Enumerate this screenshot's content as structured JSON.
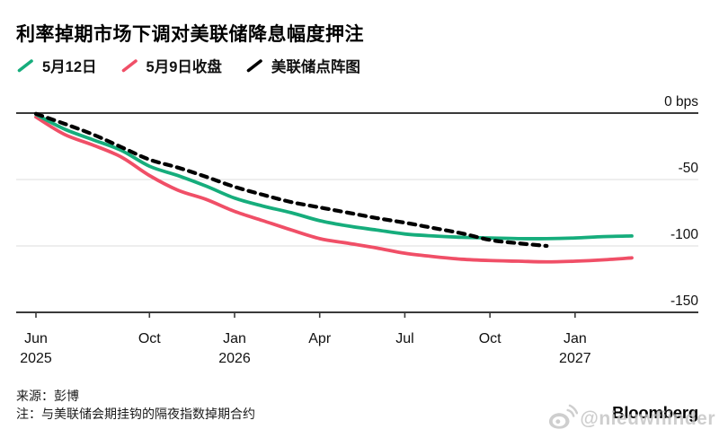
{
  "header": {
    "title": "利率掉期市场下调对美联储降息幅度押注"
  },
  "legend": {
    "items": [
      {
        "label": "5月12日"
      },
      {
        "label": "5月9日收盘"
      },
      {
        "label": "美联储点阵图"
      }
    ]
  },
  "chart_data": {
    "type": "line",
    "title": "利率掉期市场下调对美联储降息幅度押注",
    "ylabel": "bps",
    "ylim": [
      0,
      -150
    ],
    "grid": "horizontal",
    "legend_position": "top",
    "x_unit": "months from Jun 2025",
    "y_ticks": [
      {
        "label": "0 bps",
        "value": 0
      },
      {
        "label": "-50",
        "value": -50
      },
      {
        "label": "-100",
        "value": -100
      },
      {
        "label": "-150",
        "value": -150
      }
    ],
    "x_ticks": [
      {
        "label": "Jun",
        "year": "2025",
        "month_index": 0
      },
      {
        "label": "Oct",
        "year": "",
        "month_index": 4
      },
      {
        "label": "Jan",
        "year": "2026",
        "month_index": 7
      },
      {
        "label": "Apr",
        "year": "",
        "month_index": 10
      },
      {
        "label": "Jul",
        "year": "",
        "month_index": 13
      },
      {
        "label": "Oct",
        "year": "",
        "month_index": 16
      },
      {
        "label": "Jan",
        "year": "2027",
        "month_index": 19
      }
    ],
    "series": [
      {
        "name": "5月9日收盘",
        "color": "#f04f67",
        "style": "solid",
        "width": 3.8,
        "values": [
          -3,
          -16,
          -24,
          -33,
          -47,
          -58,
          -65,
          -74,
          -81,
          -88,
          -94.5,
          -98,
          -101.5,
          -105.5,
          -108,
          -110,
          -111,
          -111.5,
          -112,
          -111.5,
          -110.5,
          -109
        ]
      },
      {
        "name": "5月12日",
        "color": "#16ad7c",
        "style": "solid",
        "width": 3.8,
        "values": [
          -1,
          -12,
          -20,
          -28,
          -40,
          -47,
          -55,
          -64,
          -70,
          -75,
          -81,
          -85,
          -88,
          -91,
          -92.5,
          -93.5,
          -94,
          -94.5,
          -94.5,
          -94,
          -93,
          -92.5
        ]
      },
      {
        "name": "美联储点阵图",
        "color": "#000000",
        "style": "dashed",
        "width": 4.2,
        "values": [
          -0.5,
          -8,
          -16,
          -25.5,
          -35,
          -41,
          -48,
          -55.5,
          -61.5,
          -67,
          -71,
          -75,
          -79,
          -82.5,
          -86.5,
          -90.5,
          -95.5,
          -98,
          -100
        ]
      }
    ]
  },
  "footer": {
    "source": "来源：彭博",
    "note": "注：与美联储会期挂钩的隔夜指数掉期合约",
    "logo": "Bloomberg",
    "watermark": "@nieuwfiinder"
  },
  "colors": {
    "axis": "#3a3a3a",
    "grid": "#dcdcdc",
    "text": "#111111"
  }
}
